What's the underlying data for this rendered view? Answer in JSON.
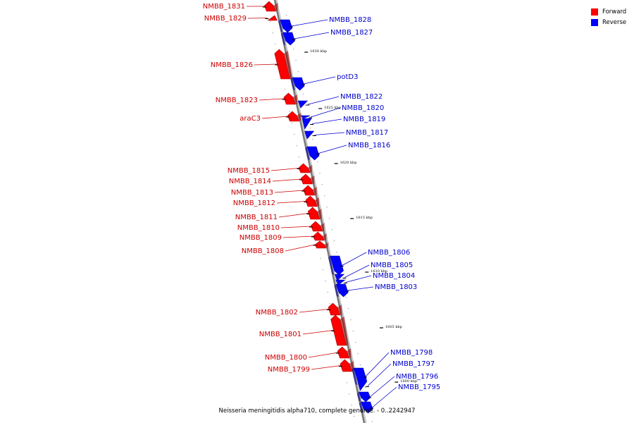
{
  "legend": {
    "forward_label": "Forward",
    "reverse_label": "Reverse",
    "forward_color": "#ff0000",
    "reverse_color": "#0000ff"
  },
  "caption": "Neisseria meningitidis alpha710, complete genome. - 0..2242947",
  "ticks": [
    "1630 kbp",
    "1625 kbp",
    "1620 kbp",
    "1615 kbp",
    "1610 kbp",
    "1605 kbp",
    "1600 kbp"
  ],
  "genes": [
    {
      "name": "NMBB_1831",
      "strand": "forward"
    },
    {
      "name": "NMBB_1829",
      "strand": "forward"
    },
    {
      "name": "NMBB_1828",
      "strand": "reverse"
    },
    {
      "name": "NMBB_1827",
      "strand": "reverse"
    },
    {
      "name": "NMBB_1826",
      "strand": "forward"
    },
    {
      "name": "potD3",
      "strand": "reverse"
    },
    {
      "name": "NMBB_1823",
      "strand": "forward"
    },
    {
      "name": "NMBB_1822",
      "strand": "reverse"
    },
    {
      "name": "NMBB_1820",
      "strand": "reverse"
    },
    {
      "name": "araC3",
      "strand": "forward"
    },
    {
      "name": "NMBB_1819",
      "strand": "reverse"
    },
    {
      "name": "NMBB_1817",
      "strand": "reverse"
    },
    {
      "name": "NMBB_1816",
      "strand": "reverse"
    },
    {
      "name": "NMBB_1815",
      "strand": "forward"
    },
    {
      "name": "NMBB_1814",
      "strand": "forward"
    },
    {
      "name": "NMBB_1813",
      "strand": "forward"
    },
    {
      "name": "NMBB_1812",
      "strand": "forward"
    },
    {
      "name": "NMBB_1811",
      "strand": "forward"
    },
    {
      "name": "NMBB_1810",
      "strand": "forward"
    },
    {
      "name": "NMBB_1809",
      "strand": "forward"
    },
    {
      "name": "NMBB_1808",
      "strand": "forward"
    },
    {
      "name": "NMBB_1806",
      "strand": "reverse"
    },
    {
      "name": "NMBB_1805",
      "strand": "reverse"
    },
    {
      "name": "NMBB_1804",
      "strand": "reverse"
    },
    {
      "name": "NMBB_1803",
      "strand": "reverse"
    },
    {
      "name": "NMBB_1802",
      "strand": "forward"
    },
    {
      "name": "NMBB_1801",
      "strand": "forward"
    },
    {
      "name": "NMBB_1800",
      "strand": "forward"
    },
    {
      "name": "NMBB_1799",
      "strand": "forward"
    },
    {
      "name": "NMBB_1798",
      "strand": "reverse"
    },
    {
      "name": "NMBB_1797",
      "strand": "reverse"
    },
    {
      "name": "NMBB_1796",
      "strand": "reverse"
    },
    {
      "name": "NMBB_1795",
      "strand": "reverse"
    }
  ]
}
